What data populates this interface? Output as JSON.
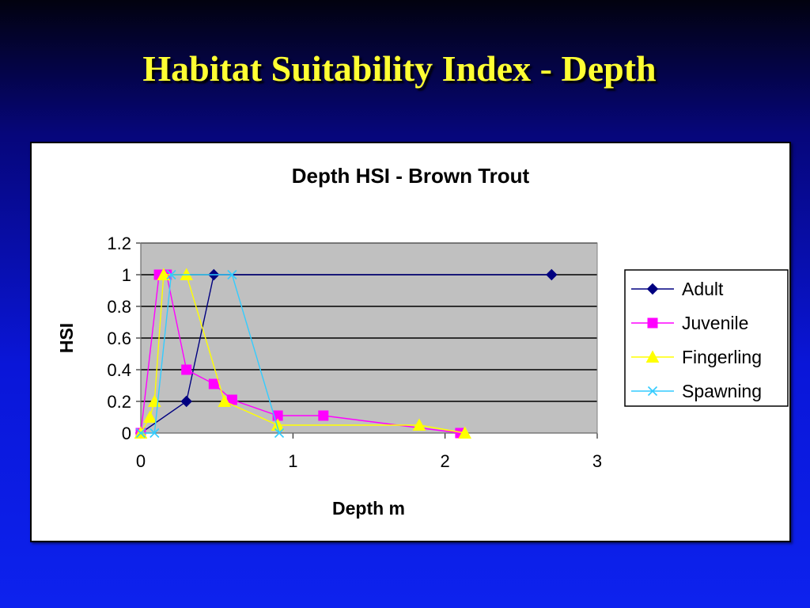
{
  "slide": {
    "title": "Habitat Suitability Index - Depth"
  },
  "colors": {
    "plot_bg": "#c0c0c0",
    "title": "#ffff33",
    "background": "#0a16d8"
  },
  "chart_data": {
    "type": "line",
    "title": "Depth HSI - Brown Trout",
    "xlabel": "Depth m",
    "ylabel": "HSI",
    "xlim": [
      0,
      3
    ],
    "ylim": [
      0,
      1.2
    ],
    "x_ticks": [
      "0",
      "1",
      "2",
      "3"
    ],
    "y_ticks": [
      "0",
      "0.2",
      "0.4",
      "0.6",
      "0.8",
      "1",
      "1.2"
    ],
    "grid": true,
    "legend_position": "right",
    "series": [
      {
        "name": "Adult",
        "color": "#000080",
        "marker": "diamond",
        "x": [
          0,
          0.3,
          0.48,
          2.7
        ],
        "y": [
          0,
          0.2,
          1,
          1
        ]
      },
      {
        "name": "Juvenile",
        "color": "#ff00ff",
        "marker": "square",
        "x": [
          0,
          0.12,
          0.17,
          0.3,
          0.48,
          0.6,
          0.9,
          1.2,
          2.1
        ],
        "y": [
          0,
          1,
          1,
          0.4,
          0.31,
          0.21,
          0.11,
          0.11,
          0
        ]
      },
      {
        "name": "Fingerling",
        "color": "#ffff00",
        "marker": "triangle",
        "x": [
          0,
          0.06,
          0.09,
          0.15,
          0.3,
          0.55,
          0.9,
          1.83,
          2.13
        ],
        "y": [
          0,
          0.1,
          0.2,
          1,
          1,
          0.2,
          0.05,
          0.05,
          0
        ]
      },
      {
        "name": "Spawning",
        "color": "#33ccff",
        "marker": "x",
        "x": [
          0,
          0.09,
          0.2,
          0.6,
          0.91
        ],
        "y": [
          0,
          0,
          1,
          1,
          0
        ]
      }
    ]
  }
}
